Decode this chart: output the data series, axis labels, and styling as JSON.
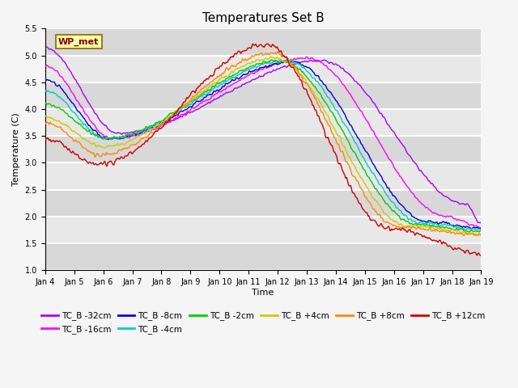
{
  "title": "Temperatures Set B",
  "xlabel": "Time",
  "ylabel": "Temperature (C)",
  "ylim": [
    1.0,
    5.5
  ],
  "yticks": [
    1.0,
    1.5,
    2.0,
    2.5,
    3.0,
    3.5,
    4.0,
    4.5,
    5.0,
    5.5
  ],
  "date_labels": [
    "Jan 4",
    "Jan 5",
    "Jan 6",
    "Jan 7",
    "Jan 8",
    "Jan 9",
    "Jan 10",
    "Jan 11",
    "Jan 12",
    "Jan 13",
    "Jan 14",
    "Jan 15",
    "Jan 16",
    "Jan 17",
    "Jan 18",
    "Jan 19"
  ],
  "series_order": [
    "TC_B -32cm",
    "TC_B -16cm",
    "TC_B -8cm",
    "TC_B -4cm",
    "TC_B -2cm",
    "TC_B +4cm",
    "TC_B +8cm",
    "TC_B +12cm"
  ],
  "series_colors": [
    "#aa00ff",
    "#ff00ff",
    "#0000dd",
    "#00cccc",
    "#00cc00",
    "#cccc00",
    "#ff8800",
    "#cc0000"
  ],
  "init_vals": [
    5.15,
    4.8,
    4.55,
    4.35,
    4.1,
    3.85,
    3.75,
    3.45
  ],
  "valley_vals": [
    3.55,
    3.45,
    3.45,
    3.45,
    3.45,
    3.3,
    3.15,
    2.97
  ],
  "valley_times": [
    2.5,
    2.3,
    2.2,
    2.1,
    2.1,
    2.0,
    1.9,
    1.85
  ],
  "peak_vals": [
    4.9,
    4.95,
    4.88,
    4.9,
    4.9,
    4.95,
    5.05,
    5.2
  ],
  "peak_times": [
    9.5,
    9.0,
    8.5,
    8.3,
    8.1,
    7.9,
    7.8,
    7.6
  ],
  "end_vals": [
    2.22,
    2.0,
    1.9,
    1.88,
    1.85,
    1.82,
    1.8,
    1.78
  ],
  "end_times": [
    14.5,
    13.8,
    13.2,
    13.0,
    12.8,
    12.5,
    12.2,
    11.8
  ],
  "min_vals": [
    1.85,
    1.8,
    1.78,
    1.75,
    1.72,
    1.68,
    1.65,
    1.28
  ],
  "min_times": [
    15.0,
    15.0,
    15.0,
    15.0,
    15.0,
    15.0,
    15.2,
    15.3
  ],
  "noise_seeds": [
    42,
    43,
    44,
    45,
    46,
    47,
    48,
    49
  ],
  "noise_scales": [
    0.025,
    0.025,
    0.03,
    0.03,
    0.03,
    0.035,
    0.04,
    0.05
  ],
  "wp_met_box_color": "#ffffaa",
  "wp_met_text_color": "#880000",
  "wp_met_border_color": "#886600",
  "ax_bg_color": "#e8e8e8",
  "fig_bg_color": "#f5f5f5",
  "grid_color": "#ffffff",
  "grid_linewidth": 1.5,
  "line_linewidth": 1.0,
  "title_fontsize": 11,
  "tick_fontsize": 7,
  "ylabel_fontsize": 8,
  "xlabel_fontsize": 8,
  "legend_fontsize": 7.5
}
